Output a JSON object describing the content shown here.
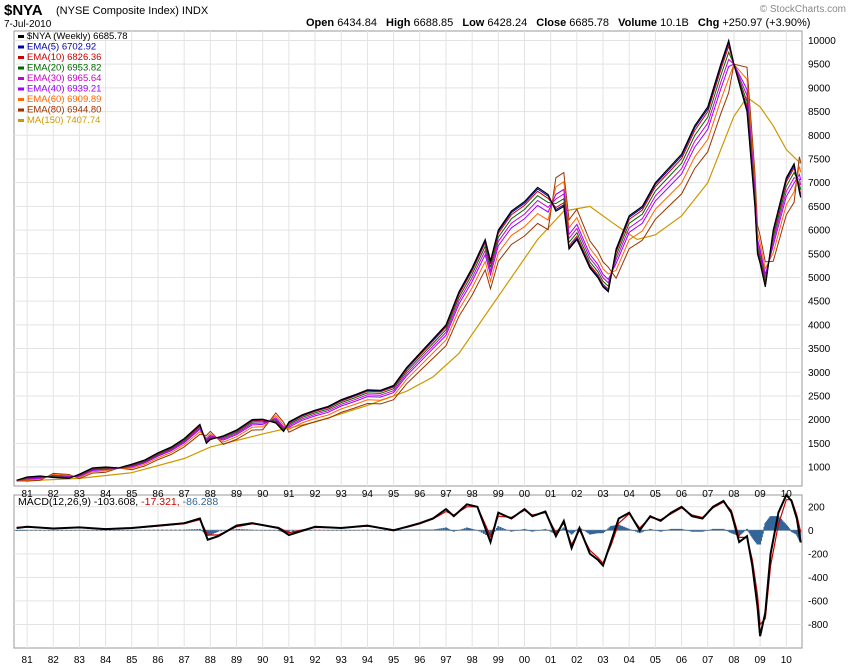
{
  "header": {
    "symbol": "$NYA",
    "name": "(NYSE Composite Index)  INDX",
    "date": "7-Jul-2010",
    "open_label": "Open",
    "open": "6434.84",
    "high_label": "High",
    "high": "6688.85",
    "low_label": "Low",
    "low": "6428.24",
    "close_label": "Close",
    "close": "6685.78",
    "volume_label": "Volume",
    "volume": "10.1B",
    "chg_label": "Chg",
    "chg": "+250.97 (+3.90%)",
    "copyright": "© StockCharts.com"
  },
  "colors": {
    "price": "#000000",
    "ema5": "#0000aa",
    "ema10": "#cc0000",
    "ema20": "#006600",
    "ema30": "#cc00cc",
    "ema40": "#9900ff",
    "ema60": "#ff6600",
    "ema80": "#993300",
    "ma150": "#cc9900",
    "macd": "#000000",
    "signal": "#cc0000",
    "hist": "#336699"
  },
  "chart_data": [
    {
      "type": "line",
      "title": "$NYA (Weekly) 6685.78",
      "ylim": [
        600,
        10200
      ],
      "yticks": [
        1000,
        1500,
        2000,
        2500,
        3000,
        3500,
        4000,
        4500,
        5000,
        5500,
        6000,
        6500,
        7000,
        7500,
        8000,
        8500,
        9000,
        9500,
        10000
      ],
      "xlim": [
        1980.5,
        2010.6
      ],
      "xticks": [
        "81",
        "82",
        "83",
        "84",
        "85",
        "86",
        "87",
        "88",
        "89",
        "90",
        "91",
        "92",
        "93",
        "94",
        "95",
        "96",
        "97",
        "98",
        "99",
        "00",
        "01",
        "02",
        "03",
        "04",
        "05",
        "06",
        "07",
        "08",
        "09",
        "10"
      ],
      "legend": [
        {
          "key": "price",
          "label": "$NYA (Weekly) 6685.78"
        },
        {
          "key": "ema5",
          "label": "EMA(5) 6702.92"
        },
        {
          "key": "ema10",
          "label": "EMA(10) 6826.36"
        },
        {
          "key": "ema20",
          "label": "EMA(20) 6953.82"
        },
        {
          "key": "ema30",
          "label": "EMA(30) 6965.64"
        },
        {
          "key": "ema40",
          "label": "EMA(40) 6939.21"
        },
        {
          "key": "ema60",
          "label": "EMA(60) 6909.89"
        },
        {
          "key": "ema80",
          "label": "EMA(80) 6944.80"
        },
        {
          "key": "ma150",
          "label": "MA(150) 7407.74"
        }
      ],
      "series_price": {
        "x": [
          1980.6,
          1981.0,
          1981.5,
          1982.0,
          1982.6,
          1983.0,
          1983.5,
          1984.0,
          1984.5,
          1985.0,
          1985.5,
          1986.0,
          1986.5,
          1987.0,
          1987.6,
          1987.85,
          1988.0,
          1988.5,
          1989.0,
          1989.6,
          1990.0,
          1990.5,
          1990.8,
          1991.0,
          1991.5,
          1992.0,
          1992.5,
          1993.0,
          1993.5,
          1994.0,
          1994.5,
          1995.0,
          1995.5,
          1996.0,
          1996.5,
          1997.0,
          1997.5,
          1997.8,
          1998.0,
          1998.5,
          1998.7,
          1999.0,
          1999.5,
          2000.0,
          2000.5,
          2000.9,
          2001.2,
          2001.5,
          2001.7,
          2002.0,
          2002.5,
          2002.8,
          2003.0,
          2003.2,
          2003.5,
          2004.0,
          2004.5,
          2005.0,
          2005.5,
          2006.0,
          2006.5,
          2007.0,
          2007.5,
          2007.8,
          2008.0,
          2008.5,
          2008.8,
          2008.9,
          2009.0,
          2009.2,
          2009.5,
          2010.0,
          2010.3,
          2010.5,
          2010.55
        ],
        "y": [
          720,
          790,
          810,
          780,
          760,
          850,
          980,
          1000,
          980,
          1060,
          1150,
          1300,
          1420,
          1600,
          1900,
          1500,
          1580,
          1660,
          1780,
          2000,
          2010,
          1930,
          1750,
          1950,
          2100,
          2200,
          2280,
          2420,
          2520,
          2630,
          2620,
          2720,
          3100,
          3400,
          3700,
          4000,
          4700,
          5000,
          5200,
          5800,
          5350,
          6000,
          6400,
          6600,
          6900,
          6750,
          6400,
          6500,
          5600,
          5800,
          5200,
          5000,
          4800,
          4700,
          5600,
          6300,
          6500,
          7000,
          7300,
          7600,
          8200,
          8600,
          9500,
          10000,
          9500,
          8500,
          6500,
          5500,
          5300,
          4800,
          6000,
          7100,
          7400,
          6800,
          6686
        ]
      },
      "series_ma150": {
        "x": [
          1980.6,
          1983.0,
          1985.0,
          1987.0,
          1988.0,
          1990.0,
          1992.0,
          1994.0,
          1995.5,
          1996.5,
          1997.5,
          1998.5,
          1999.5,
          2000.5,
          2001.5,
          2002.5,
          2003.5,
          2004.3,
          2005.0,
          2006.0,
          2007.0,
          2008.0,
          2008.5,
          2009.0,
          2009.5,
          2010.0,
          2010.55
        ],
        "y": [
          700,
          760,
          880,
          1180,
          1420,
          1700,
          1950,
          2300,
          2600,
          2900,
          3400,
          4200,
          5000,
          5800,
          6400,
          6500,
          6100,
          5800,
          5900,
          6300,
          7000,
          8400,
          8800,
          8600,
          8200,
          7700,
          7400
        ]
      },
      "ema_spread": {
        "ema5": 0.005,
        "ema10": 0.012,
        "ema20": 0.025,
        "ema30": 0.04,
        "ema40": 0.055,
        "ema60": 0.08,
        "ema80": 0.11
      }
    },
    {
      "type": "line",
      "title": "MACD(12,26,9)",
      "values_label": {
        "macd": "-103.608",
        "signal": "-17.321",
        "hist": "-86.288"
      },
      "ylim": [
        -1000,
        300
      ],
      "yticks": [
        200,
        0,
        -200,
        -400,
        -600,
        -800
      ],
      "x": [
        1980.6,
        1981.0,
        1982.0,
        1983.0,
        1984.0,
        1985.0,
        1986.0,
        1987.0,
        1987.6,
        1987.9,
        1988.3,
        1989.0,
        1989.6,
        1990.6,
        1991.0,
        1992.0,
        1993.0,
        1994.0,
        1995.0,
        1995.5,
        1996.0,
        1996.5,
        1997.0,
        1997.3,
        1997.8,
        1998.2,
        1998.7,
        1999.0,
        1999.5,
        2000.0,
        2000.3,
        2000.8,
        2001.2,
        2001.5,
        2001.8,
        2002.1,
        2002.5,
        2002.8,
        2003.0,
        2003.3,
        2003.6,
        2004.0,
        2004.4,
        2004.8,
        2005.2,
        2005.6,
        2006.0,
        2006.4,
        2006.8,
        2007.2,
        2007.6,
        2007.9,
        2008.2,
        2008.5,
        2008.7,
        2008.9,
        2009.0,
        2009.2,
        2009.4,
        2009.7,
        2010.0,
        2010.2,
        2010.4,
        2010.55
      ],
      "macd": [
        20,
        30,
        15,
        25,
        10,
        20,
        40,
        60,
        100,
        -80,
        -50,
        40,
        60,
        20,
        -40,
        30,
        20,
        40,
        0,
        30,
        60,
        100,
        180,
        120,
        220,
        200,
        -100,
        150,
        100,
        180,
        120,
        160,
        -50,
        80,
        -150,
        20,
        -200,
        -250,
        -300,
        -100,
        100,
        150,
        0,
        120,
        80,
        150,
        200,
        120,
        100,
        200,
        250,
        150,
        -100,
        -50,
        -300,
        -650,
        -900,
        -700,
        -200,
        150,
        300,
        250,
        100,
        -104
      ],
      "signal": [
        25,
        28,
        18,
        22,
        12,
        18,
        35,
        55,
        90,
        -40,
        -40,
        30,
        55,
        25,
        -20,
        25,
        22,
        35,
        5,
        25,
        55,
        95,
        160,
        130,
        200,
        200,
        -50,
        120,
        110,
        170,
        130,
        150,
        -20,
        60,
        -120,
        0,
        -170,
        -230,
        -280,
        -130,
        60,
        140,
        20,
        110,
        90,
        140,
        190,
        130,
        110,
        190,
        240,
        170,
        -60,
        -60,
        -250,
        -550,
        -800,
        -750,
        -300,
        50,
        260,
        260,
        130,
        -17
      ]
    }
  ],
  "xtick_labels_bottom": [
    "81",
    "82",
    "83",
    "84",
    "85",
    "86",
    "87",
    "88",
    "89",
    "90",
    "91",
    "92",
    "93",
    "94",
    "95",
    "96",
    "97",
    "98",
    "99",
    "00",
    "01",
    "02",
    "03",
    "04",
    "05",
    "06",
    "07",
    "08",
    "09",
    "10"
  ]
}
